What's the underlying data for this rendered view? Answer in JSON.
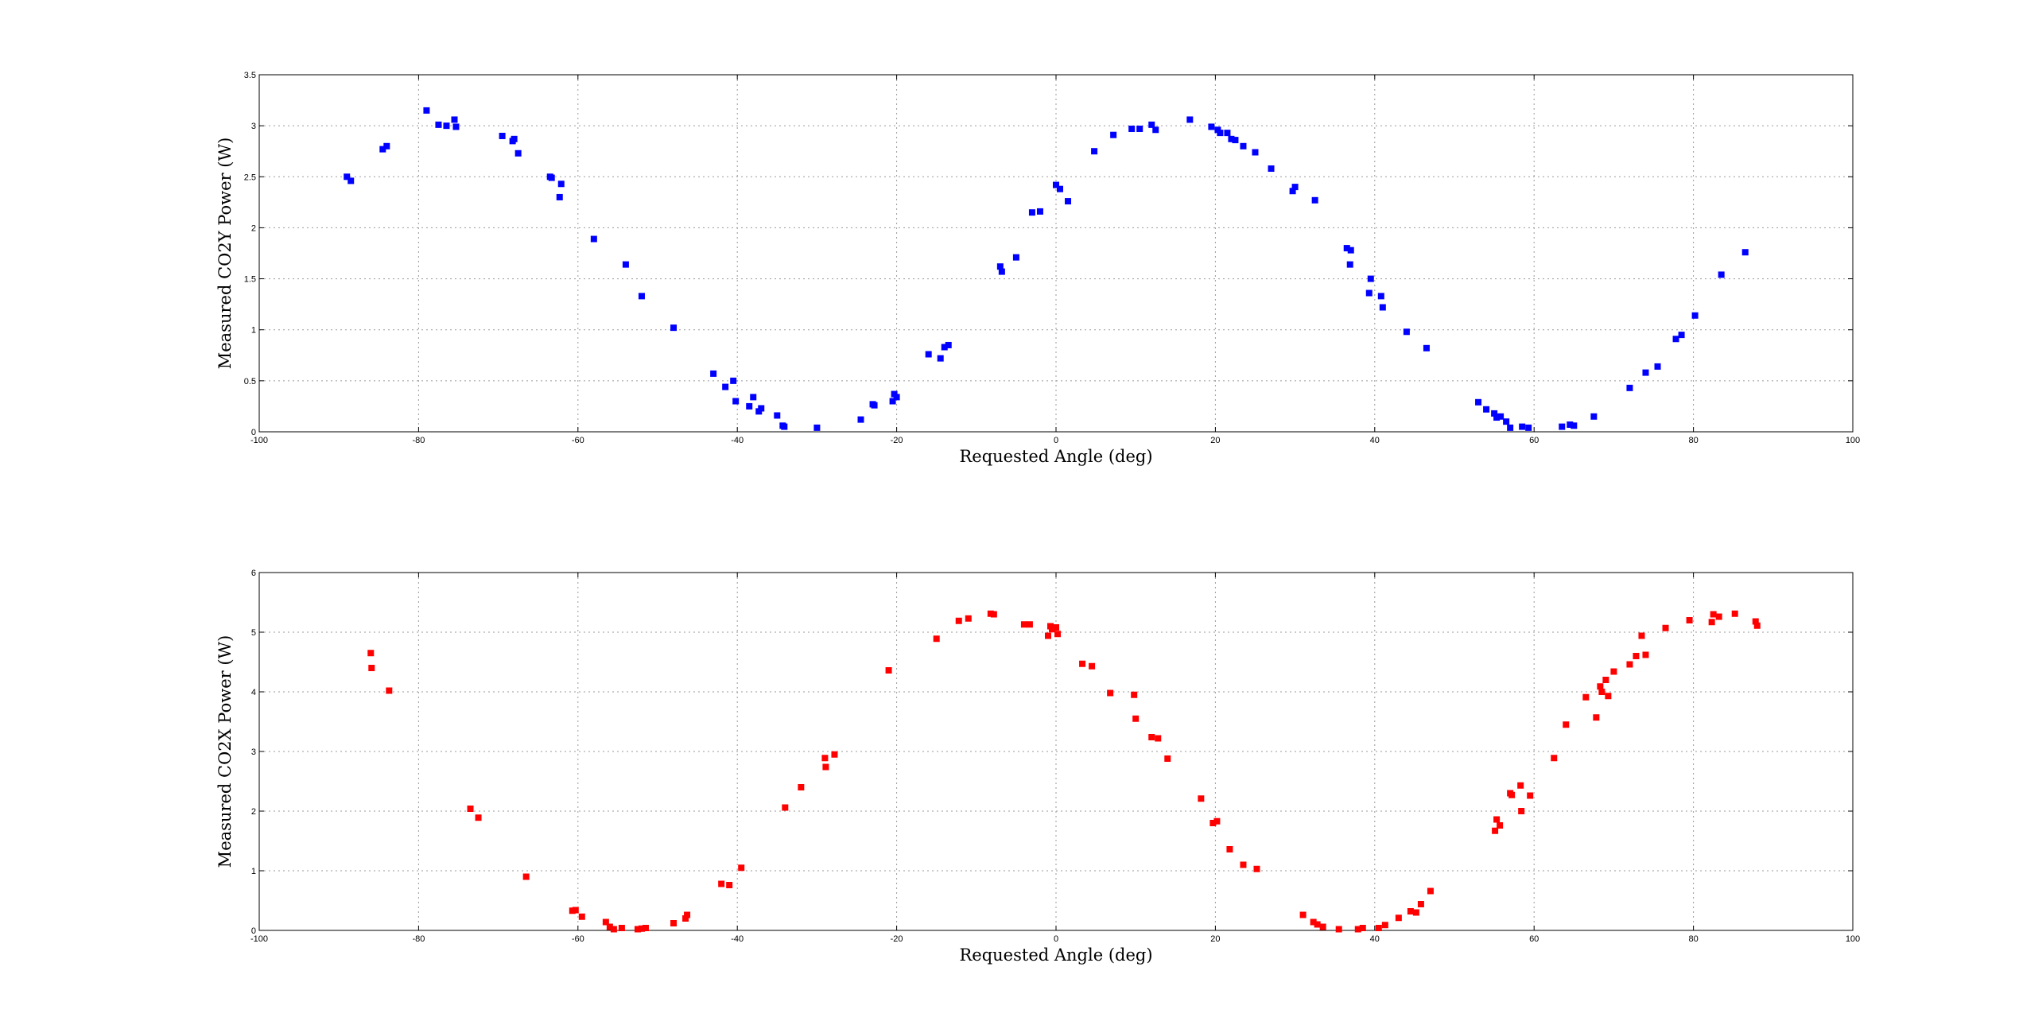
{
  "chart_data": [
    {
      "type": "scatter",
      "xlabel": "Requested Angle (deg)",
      "ylabel": "Measured CO2Y Power (W)",
      "xlim": [
        -100,
        100
      ],
      "ylim": [
        0,
        3.5
      ],
      "xticks": [
        -100,
        -80,
        -60,
        -40,
        -20,
        0,
        20,
        40,
        60,
        80,
        100
      ],
      "yticks": [
        0,
        0.5,
        1,
        1.5,
        2,
        2.5,
        3,
        3.5
      ],
      "xtick_labels": [
        "-100",
        "-80",
        "-60",
        "-40",
        "-20",
        "0",
        "20",
        "40",
        "60",
        "80",
        "100"
      ],
      "ytick_labels": [
        "0",
        "0.5",
        "1",
        "1.5",
        "2",
        "2.5",
        "3",
        "3.5"
      ],
      "grid": true,
      "legend": "none",
      "marker": "square",
      "color": "#0000ff",
      "x": [
        -89,
        -88.5,
        -84.5,
        -84,
        -79,
        -77.5,
        -76.5,
        -75.5,
        -75.3,
        -69.5,
        -68.2,
        -68,
        -67.5,
        -63.5,
        -63.3,
        -62.3,
        -62.1,
        -58,
        -54,
        -52,
        -48,
        -43,
        -41.5,
        -40.5,
        -40.2,
        -38.5,
        -38,
        -37.3,
        -37,
        -35,
        -34.3,
        -34.1,
        -30,
        -24.5,
        -23,
        -22.8,
        -20.5,
        -20.3,
        -20,
        -16,
        -14.5,
        -14,
        -13.5,
        -7,
        -6.8,
        -5,
        -3,
        -2,
        0,
        0.5,
        1.5,
        4.8,
        7.2,
        9.5,
        10.5,
        12,
        12.5,
        16.8,
        19.5,
        20.3,
        20.6,
        21.5,
        22,
        22.5,
        23.5,
        25,
        27,
        29.7,
        30,
        32.5,
        36.5,
        37,
        36.9,
        39.5,
        39.3,
        40.8,
        41,
        44,
        46.5,
        53,
        54,
        55,
        55.3,
        55.8,
        56.5,
        57,
        58.5,
        59.3,
        63.5,
        64.5,
        65,
        67.5,
        72,
        74,
        75.5,
        77.8,
        78.5,
        80.2,
        83.5,
        86.5
      ],
      "y": [
        2.5,
        2.46,
        2.77,
        2.8,
        3.15,
        3.01,
        3.0,
        3.06,
        2.99,
        2.9,
        2.85,
        2.87,
        2.73,
        2.5,
        2.49,
        2.3,
        2.43,
        1.89,
        1.64,
        1.33,
        1.02,
        0.57,
        0.44,
        0.5,
        0.3,
        0.25,
        0.34,
        0.2,
        0.23,
        0.16,
        0.06,
        0.05,
        0.04,
        0.12,
        0.27,
        0.26,
        0.3,
        0.37,
        0.34,
        0.76,
        0.72,
        0.83,
        0.85,
        1.62,
        1.57,
        1.71,
        2.15,
        2.16,
        2.42,
        2.38,
        2.26,
        2.75,
        2.91,
        2.97,
        2.97,
        3.01,
        2.96,
        3.06,
        2.99,
        2.96,
        2.93,
        2.93,
        2.87,
        2.86,
        2.8,
        2.74,
        2.58,
        2.36,
        2.4,
        2.27,
        1.8,
        1.78,
        1.64,
        1.5,
        1.36,
        1.33,
        1.22,
        0.98,
        0.82,
        0.29,
        0.22,
        0.18,
        0.14,
        0.15,
        0.1,
        0.04,
        0.05,
        0.04,
        0.05,
        0.07,
        0.06,
        0.15,
        0.43,
        0.58,
        0.64,
        0.91,
        0.95,
        1.14,
        1.54,
        1.76
      ]
    },
    {
      "type": "scatter",
      "xlabel": "Requested Angle (deg)",
      "ylabel": "Measured CO2X Power (W)",
      "xlim": [
        -100,
        100
      ],
      "ylim": [
        0,
        6
      ],
      "xticks": [
        -100,
        -80,
        -60,
        -40,
        -20,
        0,
        20,
        40,
        60,
        80,
        100
      ],
      "yticks": [
        0,
        1,
        2,
        3,
        4,
        5,
        6
      ],
      "xtick_labels": [
        "-100",
        "-80",
        "-60",
        "-40",
        "-20",
        "0",
        "20",
        "40",
        "60",
        "80",
        "100"
      ],
      "ytick_labels": [
        "0",
        "1",
        "2",
        "3",
        "4",
        "5",
        "6"
      ],
      "grid": true,
      "legend": "none",
      "marker": "square",
      "color": "#ff0000",
      "x": [
        -86,
        -85.9,
        -83.7,
        -73.5,
        -72.5,
        -66.5,
        -60.7,
        -60.3,
        -59.5,
        -56.5,
        -56,
        -55.5,
        -54.5,
        -52.5,
        -52,
        -51.5,
        -48,
        -46.5,
        -46.3,
        -42,
        -41,
        -39.5,
        -34,
        -32,
        -29,
        -28.9,
        -27.8,
        -21,
        -15,
        -12.2,
        -11,
        -8.2,
        -7.8,
        -4,
        -3.3,
        -1,
        -0.7,
        -0.5,
        0,
        0.2,
        3.3,
        4.5,
        6.8,
        9.8,
        10,
        12,
        12.8,
        14,
        18.2,
        19.7,
        20.2,
        21.8,
        23.5,
        25.2,
        31,
        32.3,
        32.8,
        33.5,
        35.5,
        37.9,
        38.5,
        40.5,
        41.3,
        43,
        44.5,
        45.2,
        45.8,
        47,
        55.1,
        55.3,
        55.7,
        57,
        57.2,
        58.3,
        58.4,
        59.5,
        62.5,
        64,
        66.5,
        67.8,
        68.3,
        68.5,
        69,
        69.3,
        70,
        72,
        72.8,
        73.5,
        74,
        76.5,
        79.5,
        82.3,
        82.5,
        83.2,
        85.2,
        87.8,
        88
      ],
      "y": [
        4.65,
        4.4,
        4.02,
        2.04,
        1.89,
        0.9,
        0.33,
        0.34,
        0.23,
        0.14,
        0.06,
        0.02,
        0.04,
        0.02,
        0.03,
        0.04,
        0.12,
        0.2,
        0.26,
        0.78,
        0.76,
        1.05,
        2.06,
        2.4,
        2.89,
        2.74,
        2.95,
        4.36,
        4.89,
        5.19,
        5.23,
        5.31,
        5.3,
        5.13,
        5.13,
        4.94,
        5.1,
        5.05,
        5.08,
        4.97,
        4.47,
        4.43,
        3.98,
        3.95,
        3.55,
        3.24,
        3.22,
        2.88,
        2.21,
        1.8,
        1.83,
        1.36,
        1.1,
        1.03,
        0.26,
        0.14,
        0.1,
        0.06,
        0.02,
        0.02,
        0.04,
        0.04,
        0.09,
        0.21,
        0.32,
        0.3,
        0.44,
        0.66,
        1.67,
        1.86,
        1.76,
        2.3,
        2.27,
        2.43,
        2.0,
        2.26,
        2.89,
        3.45,
        3.91,
        3.57,
        4.09,
        4.0,
        4.2,
        3.93,
        4.34,
        4.46,
        4.6,
        4.94,
        4.62,
        5.07,
        5.2,
        5.17,
        5.3,
        5.26,
        5.31,
        5.18,
        5.11
      ]
    }
  ]
}
